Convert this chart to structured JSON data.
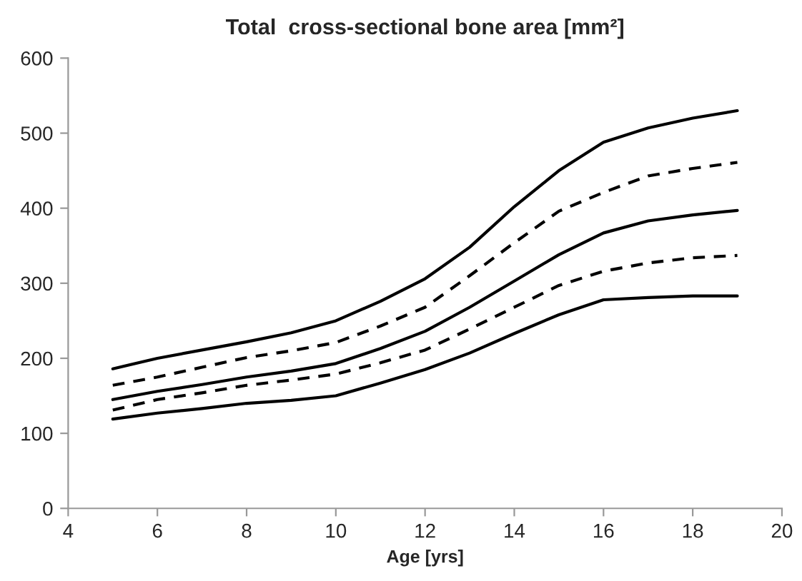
{
  "chart_data": {
    "type": "line",
    "title": "Total  cross-sectional bone area [mm²]",
    "xlabel": "Age [yrs]",
    "x": [
      5,
      6,
      7,
      8,
      9,
      10,
      11,
      12,
      13,
      14,
      15,
      16,
      17,
      18,
      19
    ],
    "series": [
      {
        "color": "#000000",
        "line_style": "solid",
        "values": [
          186,
          200,
          211,
          222,
          234,
          250,
          276,
          306,
          348,
          402,
          450,
          488,
          507,
          520,
          530
        ]
      },
      {
        "color": "#000000",
        "line_style": "dashed",
        "values": [
          164,
          175,
          188,
          201,
          210,
          221,
          243,
          268,
          310,
          354,
          396,
          421,
          443,
          453,
          461
        ]
      },
      {
        "color": "#000000",
        "line_style": "solid",
        "values": [
          145,
          156,
          165,
          175,
          183,
          193,
          213,
          236,
          268,
          303,
          338,
          367,
          383,
          391,
          397
        ]
      },
      {
        "color": "#000000",
        "line_style": "dashed",
        "values": [
          131,
          145,
          154,
          164,
          171,
          179,
          194,
          211,
          239,
          268,
          297,
          316,
          327,
          334,
          337
        ]
      },
      {
        "color": "#000000",
        "line_style": "solid",
        "values": [
          119,
          127,
          133,
          140,
          144,
          150,
          167,
          185,
          207,
          233,
          258,
          278,
          281,
          283,
          283
        ]
      }
    ],
    "xlim": [
      4,
      20
    ],
    "xticks": [
      4,
      6,
      8,
      10,
      12,
      14,
      16,
      18,
      20
    ],
    "ylim": [
      0,
      600
    ],
    "yticks": [
      0,
      100,
      200,
      300,
      400,
      500,
      600
    ],
    "grid": false,
    "legend": false,
    "marker": "none"
  }
}
